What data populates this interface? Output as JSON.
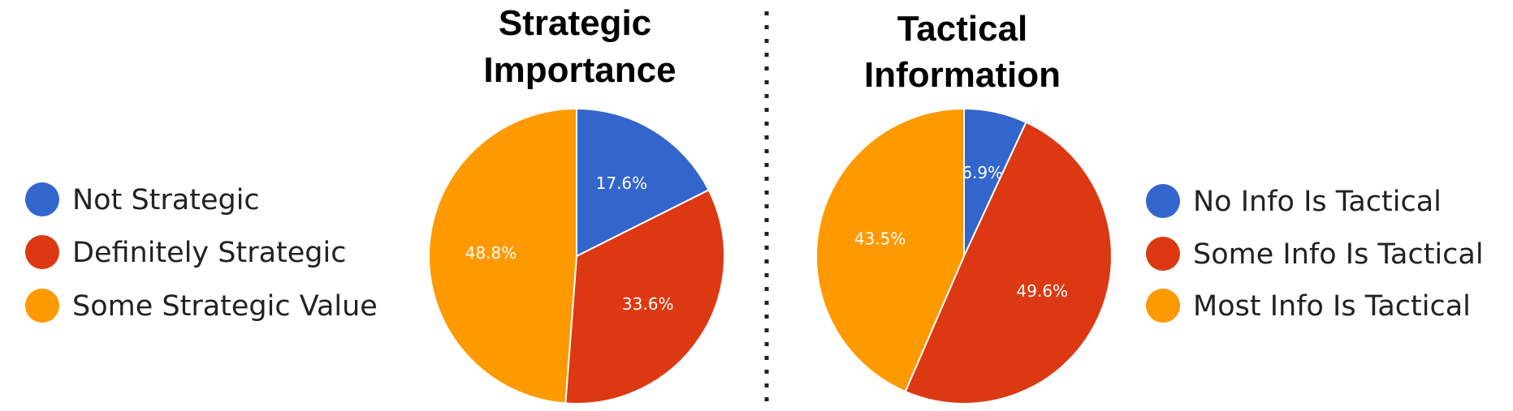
{
  "colors": {
    "blue": "#3366cc",
    "red": "#dc3912",
    "orange": "#ff9900"
  },
  "divider": {
    "style": "dotted",
    "color": "#222222"
  },
  "chart_data": [
    {
      "type": "pie",
      "title_lines": [
        "Strategic",
        "Importance"
      ],
      "legend_position": "left",
      "slices": [
        {
          "label": "Not Strategic",
          "value": 17.6,
          "value_label": "17.6%",
          "color": "#3366cc"
        },
        {
          "label": "Definitely Strategic",
          "value": 33.6,
          "value_label": "33.6%",
          "color": "#dc3912"
        },
        {
          "label": "Some Strategic Value",
          "value": 48.8,
          "value_label": "48.8%",
          "color": "#ff9900"
        }
      ]
    },
    {
      "type": "pie",
      "title_lines": [
        "Tactical",
        "Information"
      ],
      "legend_position": "right",
      "slices": [
        {
          "label": "No Info Is Tactical",
          "value": 6.9,
          "value_label": "6.9%",
          "color": "#3366cc"
        },
        {
          "label": "Some Info Is Tactical",
          "value": 49.6,
          "value_label": "49.6%",
          "color": "#dc3912"
        },
        {
          "label": "Most Info Is Tactical",
          "value": 43.5,
          "value_label": "43.5%",
          "color": "#ff9900"
        }
      ]
    }
  ]
}
